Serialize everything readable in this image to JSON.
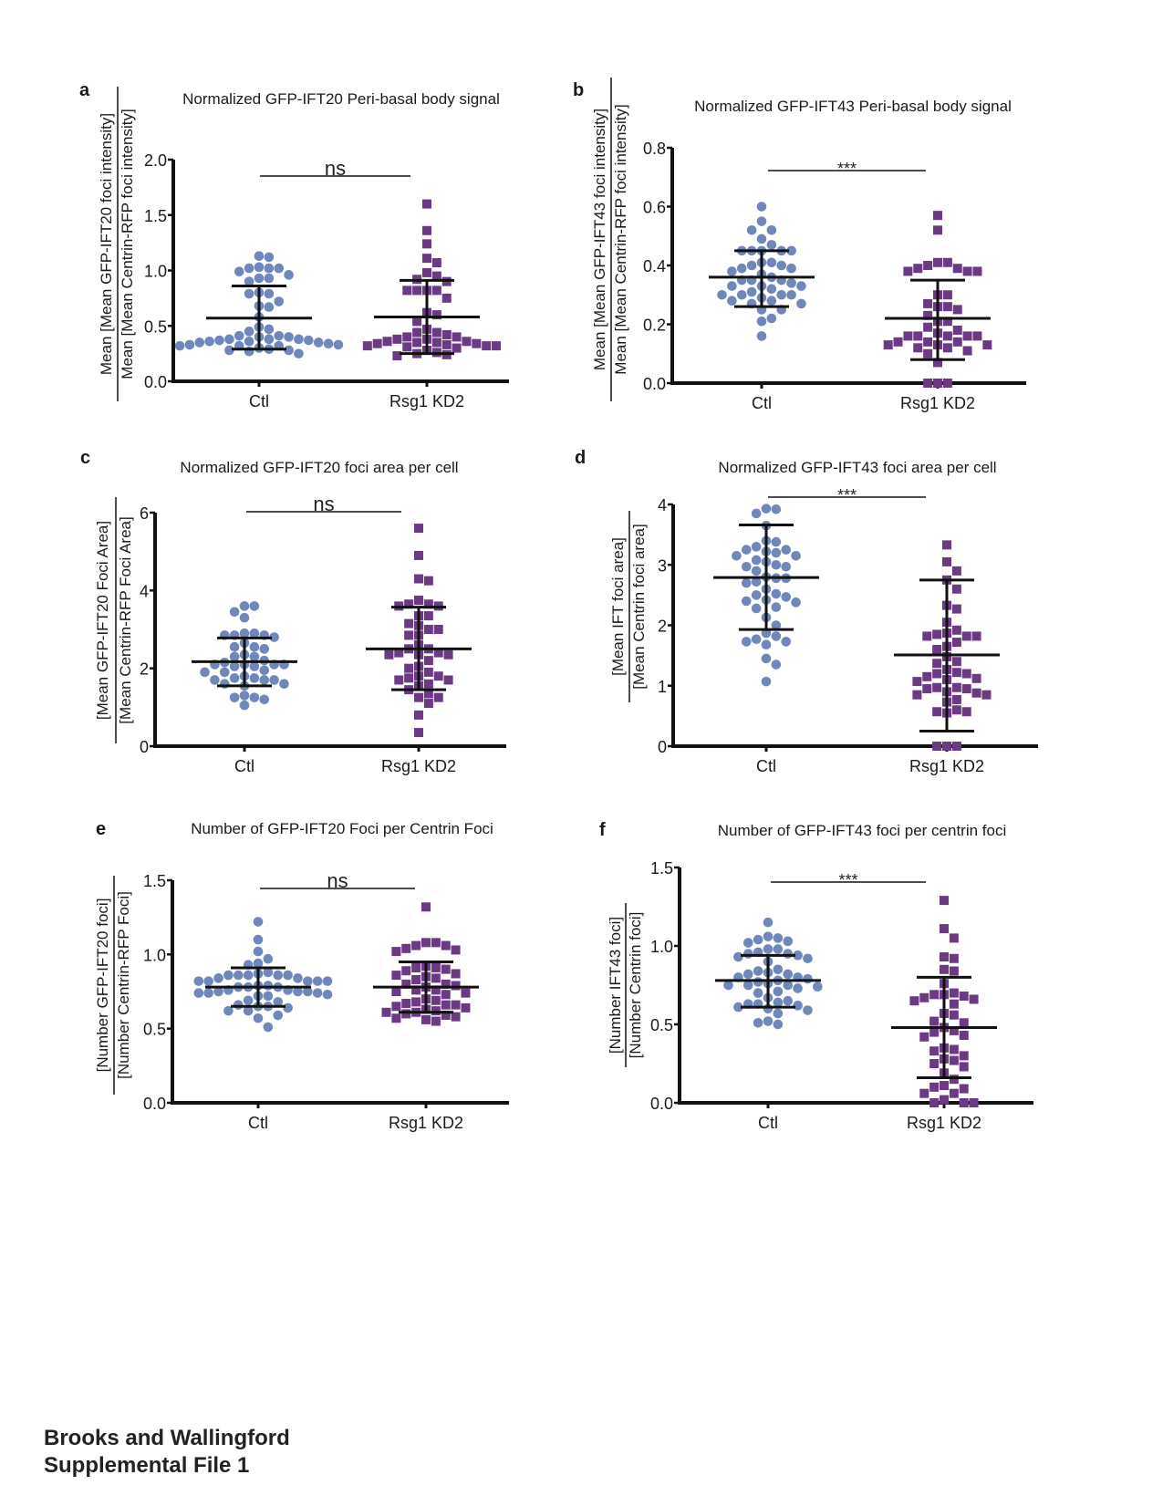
{
  "footer": {
    "line1": "Brooks and Wallingford",
    "line2": "Supplemental File 1"
  },
  "colors": {
    "ctl": "#6f87ba",
    "kd": "#6c3a84",
    "axis": "#111111",
    "text": "#1a1a1a"
  },
  "chart_data": [
    {
      "panel": "a",
      "type": "scatter",
      "title": "Normalized GFP-IFT20 Peri-basal body signal",
      "ylabel_numerator": "Mean [Mean GFP-IFT20 foci intensity]",
      "ylabel_denominator": "Mean [Mean Centrin-RFP foci intensity]",
      "categories": [
        "Ctl",
        "Rsg1 KD2"
      ],
      "ylim": [
        0,
        2.0
      ],
      "yticks": [
        0.0,
        0.5,
        1.0,
        1.5,
        2.0
      ],
      "ytick_labels": [
        "0.0",
        "0.5",
        "1.0",
        "1.5",
        "2.0"
      ],
      "significance": "ns",
      "series": [
        {
          "name": "Ctl",
          "marker": "circle",
          "mean": 0.57,
          "sd_upper": 0.86,
          "sd_lower": 0.29,
          "values": [
            1.12,
            1.13,
            0.99,
            1.02,
            1.02,
            1.02,
            1.03,
            0.93,
            0.93,
            0.9,
            0.96,
            0.8,
            0.79,
            0.79,
            0.72,
            0.68,
            0.67,
            0.58,
            0.49,
            0.45,
            0.4,
            0.4,
            0.41,
            0.41,
            0.47,
            0.38,
            0.38,
            0.38,
            0.37,
            0.37,
            0.36,
            0.35,
            0.36,
            0.35,
            0.34,
            0.33,
            0.32,
            0.32,
            0.33,
            0.32,
            0.3,
            0.28,
            0.28,
            0.27,
            0.25,
            0.29
          ]
        },
        {
          "name": "Rsg1 KD2",
          "marker": "square",
          "mean": 0.58,
          "sd_upper": 0.91,
          "sd_lower": 0.25,
          "values": [
            1.6,
            1.36,
            1.24,
            1.11,
            1.07,
            0.95,
            0.98,
            0.92,
            0.9,
            0.82,
            0.82,
            0.82,
            0.82,
            0.75,
            0.62,
            0.6,
            0.54,
            0.47,
            0.44,
            0.44,
            0.42,
            0.4,
            0.4,
            0.38,
            0.38,
            0.36,
            0.36,
            0.35,
            0.35,
            0.34,
            0.34,
            0.33,
            0.32,
            0.32,
            0.32,
            0.31,
            0.3,
            0.28,
            0.26,
            0.25,
            0.24,
            0.23
          ]
        }
      ]
    },
    {
      "panel": "b",
      "type": "scatter",
      "title": "Normalized GFP-IFT43 Peri-basal body signal",
      "ylabel_numerator": "Mean [Mean GFP-IFT43 foci intensity]",
      "ylabel_denominator": "Mean [Mean Centrin-RFP foci intensity]",
      "categories": [
        "Ctl",
        "Rsg1 KD2"
      ],
      "ylim": [
        0,
        0.8
      ],
      "yticks": [
        0.0,
        0.2,
        0.4,
        0.6,
        0.8
      ],
      "ytick_labels": [
        "0.0",
        "0.2",
        "0.4",
        "0.6",
        "0.8"
      ],
      "significance": "***",
      "series": [
        {
          "name": "Ctl",
          "marker": "circle",
          "mean": 0.36,
          "sd_upper": 0.45,
          "sd_lower": 0.26,
          "values": [
            0.6,
            0.55,
            0.52,
            0.52,
            0.49,
            0.47,
            0.45,
            0.45,
            0.45,
            0.45,
            0.45,
            0.41,
            0.41,
            0.4,
            0.4,
            0.39,
            0.39,
            0.38,
            0.37,
            0.36,
            0.35,
            0.35,
            0.35,
            0.34,
            0.33,
            0.33,
            0.33,
            0.32,
            0.31,
            0.3,
            0.3,
            0.3,
            0.3,
            0.29,
            0.28,
            0.28,
            0.27,
            0.27,
            0.25,
            0.25,
            0.22,
            0.21,
            0.16
          ]
        },
        {
          "name": "Rsg1 KD2",
          "marker": "square",
          "mean": 0.22,
          "sd_upper": 0.35,
          "sd_lower": 0.08,
          "values": [
            0.57,
            0.52,
            0.41,
            0.41,
            0.4,
            0.39,
            0.39,
            0.38,
            0.38,
            0.38,
            0.3,
            0.3,
            0.27,
            0.26,
            0.26,
            0.25,
            0.23,
            0.21,
            0.21,
            0.19,
            0.18,
            0.17,
            0.16,
            0.16,
            0.16,
            0.16,
            0.16,
            0.14,
            0.14,
            0.14,
            0.13,
            0.13,
            0.13,
            0.12,
            0.12,
            0.11,
            0.1,
            0.07,
            0.0,
            0.0,
            0.0
          ]
        }
      ]
    },
    {
      "panel": "c",
      "type": "scatter",
      "title": "Normalized GFP-IFT20 foci area per cell",
      "ylabel_numerator": "[Mean GFP-IFT20 Foci Area]",
      "ylabel_denominator": "[Mean Centrin-RFP Foci Area]",
      "categories": [
        "Ctl",
        "Rsg1 KD2"
      ],
      "ylim": [
        0,
        6
      ],
      "yticks": [
        0,
        2,
        4,
        6
      ],
      "ytick_labels": [
        "0",
        "2",
        "4",
        "6"
      ],
      "significance": "ns",
      "series": [
        {
          "name": "Ctl",
          "marker": "circle",
          "mean": 2.17,
          "sd_upper": 2.78,
          "sd_lower": 1.55,
          "values": [
            3.6,
            3.6,
            3.45,
            3.3,
            2.9,
            2.9,
            2.85,
            2.85,
            2.8,
            2.85,
            2.65,
            2.55,
            2.55,
            2.5,
            2.35,
            2.3,
            2.3,
            2.2,
            2.15,
            2.1,
            2.1,
            2.1,
            2.05,
            2.05,
            2.1,
            1.95,
            1.9,
            1.9,
            1.8,
            1.75,
            1.75,
            1.7,
            1.7,
            1.7,
            1.6,
            1.55,
            1.6,
            1.3,
            1.25,
            1.25,
            1.2,
            1.05
          ]
        },
        {
          "name": "Rsg1 KD2",
          "marker": "square",
          "mean": 2.5,
          "sd_upper": 3.57,
          "sd_lower": 1.45,
          "values": [
            5.6,
            4.9,
            4.25,
            4.3,
            3.75,
            3.65,
            3.6,
            3.65,
            3.6,
            3.35,
            3.35,
            3.15,
            3.1,
            3.0,
            3.0,
            2.85,
            2.85,
            2.6,
            2.5,
            2.5,
            2.4,
            2.35,
            2.4,
            2.35,
            2.35,
            2.2,
            2.05,
            2.0,
            1.9,
            1.8,
            1.8,
            1.75,
            1.7,
            1.7,
            1.6,
            1.55,
            1.45,
            1.35,
            1.25,
            1.25,
            1.1,
            0.8,
            0.35
          ]
        }
      ]
    },
    {
      "panel": "d",
      "type": "scatter",
      "title": "Normalized GFP-IFT43 foci area per cell",
      "ylabel_numerator": "[Mean IFT foci area]",
      "ylabel_denominator": "[Mean Centrin foci area]",
      "categories": [
        "Ctl",
        "Rsg1 KD2"
      ],
      "ylim": [
        0,
        4
      ],
      "yticks": [
        0,
        1,
        2,
        3,
        4
      ],
      "ytick_labels": [
        "0",
        "1",
        "2",
        "3",
        "4"
      ],
      "significance": "***",
      "series": [
        {
          "name": "Ctl",
          "marker": "circle",
          "mean": 2.79,
          "sd_upper": 3.66,
          "sd_lower": 1.93,
          "values": [
            3.93,
            3.92,
            3.85,
            3.65,
            3.4,
            3.38,
            3.3,
            3.25,
            3.25,
            3.22,
            3.2,
            3.15,
            3.15,
            3.05,
            3.08,
            3.0,
            2.97,
            2.97,
            2.9,
            2.8,
            2.78,
            2.78,
            2.7,
            2.72,
            2.6,
            2.52,
            2.5,
            2.47,
            2.4,
            2.42,
            2.38,
            2.28,
            2.3,
            2.13,
            2.0,
            1.87,
            1.82,
            1.77,
            1.73,
            1.73,
            1.68,
            1.45,
            1.35,
            1.07
          ]
        },
        {
          "name": "Rsg1 KD2",
          "marker": "square",
          "mean": 1.51,
          "sd_upper": 2.75,
          "sd_lower": 0.25,
          "values": [
            3.33,
            3.05,
            2.9,
            2.75,
            2.6,
            2.33,
            2.27,
            2.05,
            1.92,
            1.87,
            1.82,
            1.82,
            1.85,
            1.82,
            1.72,
            1.65,
            1.6,
            1.48,
            1.4,
            1.37,
            1.27,
            1.2,
            1.2,
            1.22,
            1.15,
            1.12,
            1.1,
            1.07,
            0.97,
            0.97,
            0.95,
            0.95,
            0.9,
            0.88,
            0.85,
            0.85,
            0.77,
            0.73,
            0.6,
            0.57,
            0.55,
            0.57,
            0.0,
            0.0,
            0.0
          ]
        }
      ]
    },
    {
      "panel": "e",
      "type": "scatter",
      "title": "Number of GFP-IFT20 Foci per Centrin Foci",
      "ylabel_numerator": "[Number GFP-IFT20 foci]",
      "ylabel_denominator": "[Number Centrin-RFP Foci]",
      "categories": [
        "Ctl",
        "Rsg1 KD2"
      ],
      "ylim": [
        0,
        1.5
      ],
      "yticks": [
        0.0,
        0.5,
        1.0,
        1.5
      ],
      "ytick_labels": [
        "0.0",
        "0.5",
        "1.0",
        "1.5"
      ],
      "significance": "ns",
      "series": [
        {
          "name": "Ctl",
          "marker": "circle",
          "mean": 0.78,
          "sd_upper": 0.91,
          "sd_lower": 0.65,
          "values": [
            1.22,
            1.1,
            1.02,
            0.97,
            0.94,
            0.93,
            0.88,
            0.86,
            0.86,
            0.86,
            0.86,
            0.86,
            0.87,
            0.84,
            0.84,
            0.82,
            0.82,
            0.82,
            0.82,
            0.82,
            0.79,
            0.79,
            0.78,
            0.78,
            0.78,
            0.76,
            0.76,
            0.75,
            0.75,
            0.75,
            0.74,
            0.74,
            0.74,
            0.73,
            0.72,
            0.72,
            0.69,
            0.68,
            0.66,
            0.65,
            0.65,
            0.64,
            0.62,
            0.62,
            0.59,
            0.57,
            0.51
          ]
        },
        {
          "name": "Rsg1 KD2",
          "marker": "square",
          "mean": 0.78,
          "sd_upper": 0.95,
          "sd_lower": 0.61,
          "values": [
            1.32,
            1.08,
            1.08,
            1.06,
            1.06,
            1.04,
            1.03,
            1.02,
            0.92,
            0.91,
            0.91,
            0.9,
            0.89,
            0.87,
            0.86,
            0.85,
            0.84,
            0.83,
            0.8,
            0.8,
            0.79,
            0.78,
            0.76,
            0.76,
            0.75,
            0.74,
            0.73,
            0.7,
            0.69,
            0.68,
            0.67,
            0.66,
            0.66,
            0.65,
            0.64,
            0.63,
            0.62,
            0.61,
            0.61,
            0.6,
            0.59,
            0.58,
            0.57,
            0.56,
            0.55
          ]
        }
      ]
    },
    {
      "panel": "f",
      "type": "scatter",
      "title": "Number of GFP-IFT43 foci per centrin foci",
      "ylabel_numerator": "[Number IFT43 foci]",
      "ylabel_denominator": "[Number Centrin foci]",
      "categories": [
        "Ctl",
        "Rsg1 KD2"
      ],
      "ylim": [
        0,
        1.5
      ],
      "yticks": [
        0.0,
        0.5,
        1.0,
        1.5
      ],
      "ytick_labels": [
        "0.0",
        "0.5",
        "1.0",
        "1.5"
      ],
      "significance": "***",
      "series": [
        {
          "name": "Ctl",
          "marker": "circle",
          "mean": 0.78,
          "sd_upper": 0.94,
          "sd_lower": 0.61,
          "values": [
            1.15,
            1.06,
            1.05,
            1.04,
            1.03,
            1.02,
            0.98,
            0.98,
            0.96,
            0.95,
            0.95,
            0.94,
            0.93,
            0.92,
            0.9,
            0.85,
            0.84,
            0.83,
            0.82,
            0.82,
            0.8,
            0.8,
            0.79,
            0.78,
            0.77,
            0.76,
            0.75,
            0.75,
            0.75,
            0.74,
            0.73,
            0.71,
            0.7,
            0.67,
            0.65,
            0.64,
            0.63,
            0.63,
            0.62,
            0.61,
            0.6,
            0.59,
            0.57,
            0.52,
            0.51,
            0.5
          ]
        },
        {
          "name": "Rsg1 KD2",
          "marker": "square",
          "mean": 0.48,
          "sd_upper": 0.8,
          "sd_lower": 0.16,
          "values": [
            1.29,
            1.11,
            1.05,
            0.93,
            0.92,
            0.84,
            0.85,
            0.76,
            0.7,
            0.69,
            0.69,
            0.68,
            0.67,
            0.66,
            0.65,
            0.63,
            0.57,
            0.56,
            0.52,
            0.51,
            0.48,
            0.46,
            0.45,
            0.43,
            0.42,
            0.35,
            0.34,
            0.33,
            0.3,
            0.28,
            0.27,
            0.25,
            0.23,
            0.19,
            0.15,
            0.1,
            0.09,
            0.11,
            0.06,
            0.06,
            0.02,
            0.0,
            0.0,
            0.0
          ]
        }
      ]
    }
  ]
}
